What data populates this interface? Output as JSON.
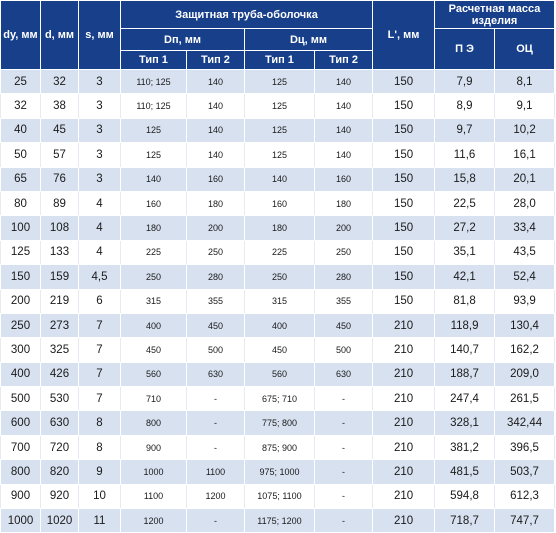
{
  "headers": {
    "dy": "dу, мм",
    "d": "d, мм",
    "s": "s, мм",
    "protective_pipe": "Защитная труба-оболочка",
    "dn": "Dп, мм",
    "dc": "Dц, мм",
    "type1": "Тип 1",
    "type2": "Тип 2",
    "L": "L', мм",
    "mass": "Расчетная масса изделия",
    "pe": "П Э",
    "oc": "ОЦ"
  },
  "rows": [
    [
      "25",
      "32",
      "3",
      "110; 125",
      "140",
      "125",
      "140",
      "150",
      "7,9",
      "8,1"
    ],
    [
      "32",
      "38",
      "3",
      "110; 125",
      "140",
      "125",
      "140",
      "150",
      "8,9",
      "9,1"
    ],
    [
      "40",
      "45",
      "3",
      "125",
      "140",
      "125",
      "140",
      "150",
      "9,7",
      "10,2"
    ],
    [
      "50",
      "57",
      "3",
      "125",
      "140",
      "125",
      "140",
      "150",
      "11,6",
      "16,1"
    ],
    [
      "65",
      "76",
      "3",
      "140",
      "160",
      "140",
      "160",
      "150",
      "15,8",
      "20,1"
    ],
    [
      "80",
      "89",
      "4",
      "160",
      "180",
      "160",
      "180",
      "150",
      "22,5",
      "28,0"
    ],
    [
      "100",
      "108",
      "4",
      "180",
      "200",
      "180",
      "200",
      "150",
      "27,2",
      "33,4"
    ],
    [
      "125",
      "133",
      "4",
      "225",
      "250",
      "225",
      "250",
      "150",
      "35,1",
      "43,5"
    ],
    [
      "150",
      "159",
      "4,5",
      "250",
      "280",
      "250",
      "280",
      "150",
      "42,1",
      "52,4"
    ],
    [
      "200",
      "219",
      "6",
      "315",
      "355",
      "315",
      "355",
      "150",
      "81,8",
      "93,9"
    ],
    [
      "250",
      "273",
      "7",
      "400",
      "450",
      "400",
      "450",
      "210",
      "118,9",
      "130,4"
    ],
    [
      "300",
      "325",
      "7",
      "450",
      "500",
      "450",
      "500",
      "210",
      "140,7",
      "162,2"
    ],
    [
      "400",
      "426",
      "7",
      "560",
      "630",
      "560",
      "630",
      "210",
      "188,7",
      "209,0"
    ],
    [
      "500",
      "530",
      "7",
      "710",
      "-",
      "675; 710",
      "-",
      "210",
      "247,4",
      "261,5"
    ],
    [
      "600",
      "630",
      "8",
      "800",
      "-",
      "775; 800",
      "-",
      "210",
      "328,1",
      "342,44"
    ],
    [
      "700",
      "720",
      "8",
      "900",
      "-",
      "875; 900",
      "-",
      "210",
      "381,2",
      "396,5"
    ],
    [
      "800",
      "820",
      "9",
      "1000",
      "1100",
      "975; 1000",
      "-",
      "210",
      "481,5",
      "503,7"
    ],
    [
      "900",
      "920",
      "10",
      "1100",
      "1200",
      "1075; 1100",
      "-",
      "210",
      "594,8",
      "612,3"
    ],
    [
      "1000",
      "1020",
      "11",
      "1200",
      "-",
      "1175; 1200",
      "-",
      "210",
      "718,7",
      "747,7"
    ]
  ]
}
